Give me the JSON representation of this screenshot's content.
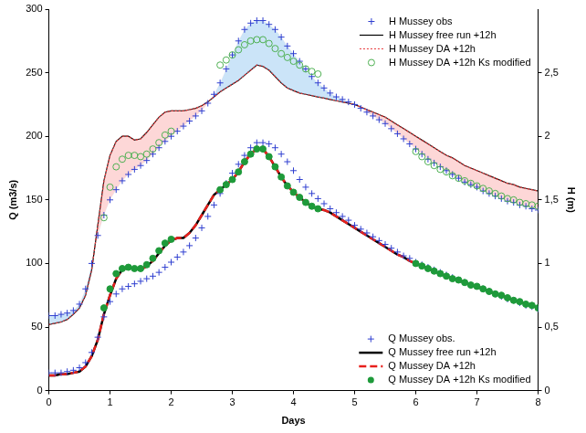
{
  "chart_data": {
    "type": "line",
    "x_label": "Days",
    "y_label": "Q (m3/s)",
    "y2_label": "H (m)",
    "grid": false,
    "legend": "right",
    "x": [
      0,
      0.1,
      0.2,
      0.3,
      0.4,
      0.5,
      0.6,
      0.7,
      0.8,
      0.9,
      1,
      1.1,
      1.2,
      1.3,
      1.4,
      1.5,
      1.6,
      1.7,
      1.8,
      1.9,
      2,
      2.1,
      2.2,
      2.3,
      2.4,
      2.5,
      2.6,
      2.7,
      2.8,
      2.9,
      3,
      3.1,
      3.2,
      3.3,
      3.4,
      3.5,
      3.6,
      3.7,
      3.8,
      3.9,
      4,
      4.1,
      4.2,
      4.3,
      4.4,
      4.5,
      4.6,
      4.7,
      4.8,
      4.9,
      5,
      5.1,
      5.2,
      5.3,
      5.4,
      5.5,
      5.6,
      5.7,
      5.8,
      5.9,
      6,
      6.1,
      6.2,
      6.3,
      6.4,
      6.5,
      6.6,
      6.7,
      6.8,
      6.9,
      7,
      7.1,
      7.2,
      7.3,
      7.4,
      7.5,
      7.6,
      7.7,
      7.8,
      7.9,
      8
    ],
    "xlim": [
      0,
      8
    ],
    "xticks": [
      0,
      1,
      2,
      3,
      4,
      5,
      6,
      7,
      8
    ],
    "ylim": [
      0,
      300
    ],
    "yticks": [
      0,
      50,
      100,
      150,
      200,
      250,
      300
    ],
    "y2lim": [
      0,
      3
    ],
    "y2ticks": [
      0,
      {
        "value": 0.5,
        "label": "0,5"
      },
      1,
      {
        "value": 1.5,
        "label": "1,5"
      },
      2,
      {
        "value": 2.5,
        "label": "2,5"
      }
    ],
    "series": [
      {
        "name": "H Mussey obs",
        "axis": "y2",
        "color": "#2f3fd0",
        "marker": "plus",
        "line_style": "none",
        "values": [
          0.59,
          0.59,
          0.6,
          0.61,
          0.63,
          0.68,
          0.8,
          1.0,
          1.22,
          1.38,
          1.5,
          1.58,
          1.65,
          1.7,
          1.74,
          1.77,
          1.81,
          1.86,
          1.91,
          1.96,
          2.0,
          2.04,
          2.08,
          2.12,
          2.16,
          2.2,
          2.26,
          2.33,
          2.42,
          2.53,
          2.64,
          2.75,
          2.84,
          2.89,
          2.91,
          2.91,
          2.88,
          2.84,
          2.78,
          2.71,
          2.65,
          2.59,
          2.53,
          2.47,
          2.42,
          2.38,
          2.34,
          2.31,
          2.29,
          2.27,
          2.25,
          2.22,
          2.19,
          2.16,
          2.13,
          2.1,
          2.06,
          2.02,
          1.98,
          1.94,
          1.9,
          1.86,
          1.82,
          1.79,
          1.76,
          1.73,
          1.7,
          1.67,
          1.64,
          1.62,
          1.6,
          1.57,
          1.55,
          1.53,
          1.51,
          1.49,
          1.48,
          1.46,
          1.45,
          1.43,
          1.42
        ]
      },
      {
        "name": "H Mussey free run +12h",
        "axis": "y2",
        "color": "#000000",
        "marker": "none",
        "line_style": "solid",
        "values": [
          0.52,
          0.53,
          0.54,
          0.56,
          0.6,
          0.65,
          0.75,
          0.95,
          1.3,
          1.65,
          1.85,
          1.96,
          2.0,
          2.0,
          1.97,
          1.98,
          2.03,
          2.09,
          2.15,
          2.19,
          2.2,
          2.2,
          2.2,
          2.21,
          2.22,
          2.24,
          2.27,
          2.31,
          2.35,
          2.38,
          2.41,
          2.44,
          2.48,
          2.52,
          2.56,
          2.55,
          2.52,
          2.47,
          2.42,
          2.38,
          2.36,
          2.34,
          2.33,
          2.32,
          2.31,
          2.3,
          2.29,
          2.28,
          2.27,
          2.26,
          2.25,
          2.23,
          2.21,
          2.19,
          2.17,
          2.15,
          2.12,
          2.09,
          2.06,
          2.03,
          2.0,
          1.97,
          1.94,
          1.91,
          1.88,
          1.85,
          1.83,
          1.8,
          1.77,
          1.75,
          1.73,
          1.71,
          1.69,
          1.67,
          1.65,
          1.63,
          1.62,
          1.6,
          1.59,
          1.58,
          1.57
        ]
      },
      {
        "name": "H Mussey DA +12h",
        "axis": "y2",
        "color": "#e8383a",
        "marker": "none",
        "line_style": "dotted",
        "values": [
          0.52,
          0.53,
          0.54,
          0.56,
          0.6,
          0.65,
          0.75,
          0.95,
          1.3,
          1.65,
          1.85,
          1.96,
          2.0,
          2.0,
          1.97,
          1.98,
          2.03,
          2.09,
          2.15,
          2.19,
          2.2,
          2.2,
          2.2,
          2.21,
          2.22,
          2.24,
          2.27,
          2.31,
          2.35,
          2.38,
          2.41,
          2.44,
          2.48,
          2.52,
          2.56,
          2.55,
          2.52,
          2.47,
          2.42,
          2.38,
          2.36,
          2.34,
          2.33,
          2.32,
          2.31,
          2.3,
          2.29,
          2.28,
          2.27,
          2.26,
          2.25,
          2.23,
          2.21,
          2.19,
          2.17,
          2.15,
          2.12,
          2.09,
          2.06,
          2.03,
          2.0,
          1.97,
          1.94,
          1.91,
          1.88,
          1.85,
          1.83,
          1.8,
          1.77,
          1.75,
          1.73,
          1.71,
          1.69,
          1.67,
          1.65,
          1.63,
          1.62,
          1.6,
          1.59,
          1.58,
          1.57
        ]
      },
      {
        "name": "H Mussey DA +12h Ks modified",
        "axis": "y2",
        "color": "#4caf50",
        "marker": "open_circle",
        "line_style": "none",
        "values": [
          null,
          null,
          null,
          null,
          null,
          null,
          null,
          null,
          null,
          1.36,
          1.6,
          1.76,
          1.82,
          1.85,
          1.85,
          1.84,
          1.86,
          1.9,
          1.95,
          2.01,
          2.04,
          null,
          null,
          null,
          null,
          null,
          null,
          null,
          2.56,
          2.6,
          2.64,
          2.68,
          2.72,
          2.75,
          2.76,
          2.76,
          2.73,
          2.69,
          2.65,
          2.62,
          2.59,
          2.56,
          2.53,
          2.51,
          2.49,
          null,
          null,
          null,
          null,
          null,
          null,
          null,
          null,
          null,
          null,
          null,
          null,
          null,
          null,
          null,
          1.88,
          1.84,
          1.8,
          1.77,
          1.74,
          1.72,
          1.69,
          1.67,
          1.65,
          1.63,
          1.61,
          1.59,
          1.57,
          1.55,
          1.53,
          1.51,
          1.5,
          1.48,
          1.47,
          1.46,
          1.45
        ]
      },
      {
        "name": "Q Mussey obs.",
        "color": "#2f3fd0",
        "marker": "plus",
        "line_style": "none",
        "values": [
          14,
          14,
          14,
          15,
          16,
          18,
          22,
          30,
          42,
          58,
          70,
          76,
          80,
          82,
          84,
          86,
          88,
          90,
          93,
          97,
          101,
          105,
          109,
          114,
          120,
          128,
          137,
          146,
          155,
          163,
          171,
          178,
          185,
          191,
          195,
          195,
          194,
          191,
          186,
          180,
          173,
          166,
          160,
          155,
          151,
          147,
          143,
          140,
          137,
          134,
          130,
          127,
          124,
          121,
          118,
          115,
          112,
          109,
          106,
          104,
          101,
          99,
          97,
          95,
          93,
          91,
          89,
          87,
          85,
          83,
          82,
          80,
          78,
          76,
          74,
          72,
          71,
          69,
          67,
          66,
          64
        ]
      },
      {
        "name": "Q Mussey free run +12h",
        "color": "#000000",
        "marker": "none",
        "line_style": "solid",
        "values": [
          12,
          12,
          13,
          13,
          14,
          15,
          19,
          27,
          40,
          60,
          75,
          88,
          95,
          97,
          96,
          95,
          98,
          102,
          108,
          114,
          118,
          120,
          120,
          124,
          130,
          138,
          146,
          154,
          158,
          162,
          166,
          172,
          180,
          186,
          190,
          190,
          184,
          176,
          168,
          161,
          156,
          152,
          148,
          145,
          143,
          142,
          140,
          137,
          134,
          131,
          128,
          125,
          122,
          119,
          116,
          113,
          110,
          107,
          105,
          102,
          100,
          98,
          96,
          94,
          92,
          90,
          88,
          87,
          85,
          83,
          82,
          80,
          78,
          76,
          75,
          73,
          71,
          70,
          68,
          67,
          65
        ]
      },
      {
        "name": "Q Mussey DA +12h",
        "color": "#e8201c",
        "marker": "none",
        "line_style": "dashed",
        "values": [
          12,
          12,
          13,
          13,
          14,
          15,
          19,
          27,
          40,
          60,
          75,
          88,
          95,
          97,
          96,
          95,
          98,
          102,
          108,
          114,
          118,
          120,
          120,
          124,
          130,
          138,
          146,
          154,
          158,
          162,
          166,
          172,
          180,
          186,
          190,
          190,
          184,
          176,
          168,
          161,
          156,
          152,
          148,
          145,
          143,
          142,
          140,
          137,
          134,
          131,
          128,
          125,
          122,
          119,
          116,
          113,
          110,
          107,
          105,
          102,
          100,
          98,
          96,
          94,
          92,
          90,
          88,
          87,
          85,
          83,
          82,
          80,
          78,
          76,
          75,
          73,
          71,
          70,
          68,
          67,
          65
        ]
      },
      {
        "name": "Q Mussey DA +12h Ks modified",
        "color": "#1e9a3a",
        "marker": "circle",
        "line_style": "none",
        "values": [
          null,
          null,
          null,
          null,
          null,
          null,
          null,
          null,
          null,
          65,
          80,
          92,
          96,
          97,
          96,
          96,
          99,
          104,
          110,
          116,
          119,
          null,
          null,
          null,
          null,
          null,
          null,
          null,
          158,
          162,
          166,
          172,
          180,
          186,
          190,
          190,
          184,
          176,
          168,
          161,
          156,
          152,
          148,
          145,
          143,
          null,
          null,
          null,
          null,
          null,
          null,
          null,
          null,
          null,
          null,
          null,
          null,
          null,
          null,
          null,
          100,
          98,
          96,
          94,
          92,
          90,
          88,
          87,
          85,
          83,
          82,
          80,
          78,
          76,
          75,
          73,
          71,
          70,
          68,
          67,
          65
        ]
      }
    ]
  }
}
